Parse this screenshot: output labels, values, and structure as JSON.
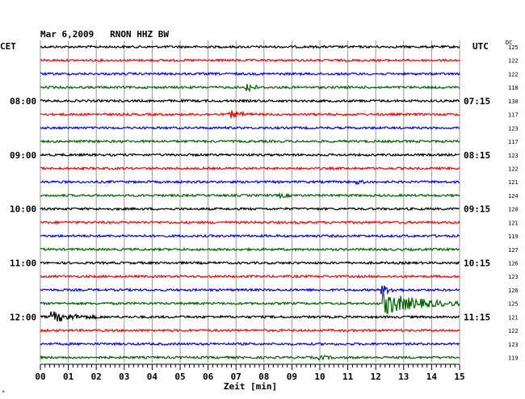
{
  "chart_data": {
    "type": "line",
    "title": "Mar 6,2009   RNON HHZ BW",
    "left_header": "CET",
    "right_header": "UTC",
    "dc_header": "DC",
    "xlabel": "Zeit [min]",
    "x_ticks": [
      "00",
      "01",
      "02",
      "03",
      "04",
      "05",
      "06",
      "07",
      "08",
      "09",
      "10",
      "11",
      "12",
      "13",
      "14",
      "15"
    ],
    "xlim": [
      0,
      15
    ],
    "corner_mark": "*",
    "colors": [
      "#000000",
      "#ff0000",
      "#0000ff",
      "#006400"
    ],
    "traces": [
      {
        "index": 0,
        "color": "#000000",
        "cet": "",
        "utc": "",
        "dc": "125",
        "events": []
      },
      {
        "index": 1,
        "color": "#ff0000",
        "cet": "",
        "utc": "",
        "dc": "122",
        "events": []
      },
      {
        "index": 2,
        "color": "#0000ff",
        "cet": "",
        "utc": "",
        "dc": "122",
        "events": []
      },
      {
        "index": 3,
        "color": "#006400",
        "cet": "",
        "utc": "",
        "dc": "118",
        "events": [
          {
            "t": 7.4,
            "amp": 6,
            "dur": 0.4
          }
        ]
      },
      {
        "index": 4,
        "color": "#000000",
        "cet": "08:00",
        "utc": "07:15",
        "dc": "130",
        "events": []
      },
      {
        "index": 5,
        "color": "#ff0000",
        "cet": "",
        "utc": "",
        "dc": "117",
        "events": [
          {
            "t": 6.8,
            "amp": 4,
            "dur": 0.8
          }
        ]
      },
      {
        "index": 6,
        "color": "#0000ff",
        "cet": "",
        "utc": "",
        "dc": "123",
        "events": []
      },
      {
        "index": 7,
        "color": "#006400",
        "cet": "",
        "utc": "",
        "dc": "117",
        "events": []
      },
      {
        "index": 8,
        "color": "#000000",
        "cet": "09:00",
        "utc": "08:15",
        "dc": "123",
        "events": []
      },
      {
        "index": 9,
        "color": "#ff0000",
        "cet": "",
        "utc": "",
        "dc": "122",
        "events": []
      },
      {
        "index": 10,
        "color": "#0000ff",
        "cet": "",
        "utc": "",
        "dc": "121",
        "events": [
          {
            "t": 11.3,
            "amp": 2,
            "dur": 0.6
          }
        ]
      },
      {
        "index": 11,
        "color": "#006400",
        "cet": "",
        "utc": "",
        "dc": "124",
        "events": [
          {
            "t": 8.6,
            "amp": 2,
            "dur": 0.5
          }
        ]
      },
      {
        "index": 12,
        "color": "#000000",
        "cet": "10:00",
        "utc": "09:15",
        "dc": "120",
        "events": []
      },
      {
        "index": 13,
        "color": "#ff0000",
        "cet": "",
        "utc": "",
        "dc": "121",
        "events": []
      },
      {
        "index": 14,
        "color": "#0000ff",
        "cet": "",
        "utc": "",
        "dc": "119",
        "events": []
      },
      {
        "index": 15,
        "color": "#006400",
        "cet": "",
        "utc": "",
        "dc": "127",
        "events": []
      },
      {
        "index": 16,
        "color": "#000000",
        "cet": "11:00",
        "utc": "10:15",
        "dc": "126",
        "events": []
      },
      {
        "index": 17,
        "color": "#ff0000",
        "cet": "",
        "utc": "",
        "dc": "123",
        "events": []
      },
      {
        "index": 18,
        "color": "#0000ff",
        "cet": "",
        "utc": "",
        "dc": "126",
        "events": [
          {
            "t": 12.2,
            "amp": 5,
            "dur": 0.8
          }
        ]
      },
      {
        "index": 19,
        "color": "#006400",
        "cet": "",
        "utc": "",
        "dc": "125",
        "events": [
          {
            "t": 12.3,
            "amp": 13,
            "dur": 2.7
          }
        ]
      },
      {
        "index": 20,
        "color": "#000000",
        "cet": "12:00",
        "utc": "11:15",
        "dc": "121",
        "events": [
          {
            "t": 0.4,
            "amp": 6,
            "dur": 1.8
          }
        ]
      },
      {
        "index": 21,
        "color": "#ff0000",
        "cet": "",
        "utc": "",
        "dc": "122",
        "events": []
      },
      {
        "index": 22,
        "color": "#0000ff",
        "cet": "",
        "utc": "",
        "dc": "123",
        "events": []
      },
      {
        "index": 23,
        "color": "#006400",
        "cet": "",
        "utc": "",
        "dc": "119",
        "events": [
          {
            "t": 10.0,
            "amp": 2,
            "dur": 0.6
          }
        ]
      }
    ]
  }
}
